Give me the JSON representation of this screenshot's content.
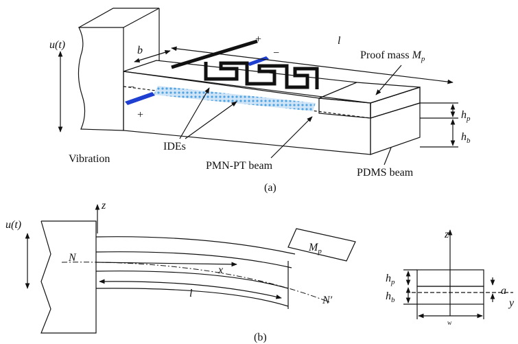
{
  "part_a": {
    "u": "u(t)",
    "b": "b",
    "l": "l",
    "proof_mass": "Proof mass ",
    "mp_symbol": "M",
    "mp_sub": "p",
    "hp_symbol": "h",
    "hp_sub": "p",
    "hb_symbol": "h",
    "hb_sub": "b",
    "ides": "IDEs",
    "vibration": "Vibration",
    "pmnpt": "PMN-PT beam",
    "pdms": "PDMS beam",
    "signs": [
      "+",
      "−",
      "−",
      "+"
    ],
    "caption": "(a)"
  },
  "part_b": {
    "u": "u(t)",
    "z": "z",
    "n": "N",
    "x": "x",
    "mp_symbol": "M",
    "mp_sub": "p",
    "l": "l",
    "n_prime": "N′",
    "caption": "(b)"
  },
  "cross_section": {
    "z": "z",
    "hp_symbol": "h",
    "hp_sub": "p",
    "hb_symbol": "h",
    "hb_sub": "b",
    "a": "a",
    "y": "y",
    "w": "w"
  }
}
